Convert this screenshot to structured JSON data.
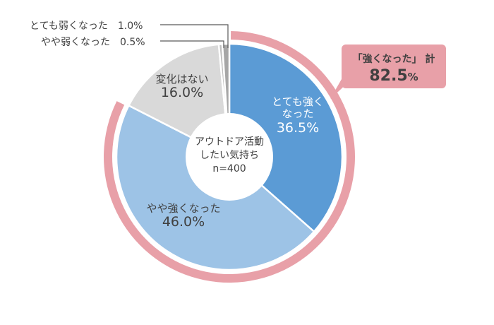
{
  "chart_data": {
    "type": "pie",
    "style": "donut",
    "title": "",
    "center_label": [
      "アウトドア活動",
      "したい気持ち",
      "n=400"
    ],
    "categories": [
      "とても強くなった",
      "やや強くなった",
      "変化はない",
      "やや弱くなった",
      "とても弱くなった"
    ],
    "values": [
      36.5,
      46.0,
      16.0,
      0.5,
      1.0
    ],
    "colors": [
      "#5b9bd5",
      "#9dc3e6",
      "#d9d9d9",
      "#bfbfbf",
      "#a6a6a6"
    ],
    "value_labels": [
      "36.5%",
      "46.0%",
      "16.0%",
      "0.5%",
      "1.0%"
    ],
    "highlight_arc": {
      "covers": [
        "とても強くなった",
        "やや強くなった"
      ],
      "color": "#e8a0a8"
    },
    "callout": {
      "title": "「強くなった」 計",
      "value": "82.5",
      "unit": "%"
    }
  },
  "labels": {
    "very_strong": {
      "cat1": "とても強く",
      "cat2": "なった",
      "val": "36.5%"
    },
    "some_strong": {
      "cat": "やや強くなった",
      "val": "46.0%"
    },
    "no_change": {
      "cat": "変化はない",
      "val": "16.0%"
    },
    "some_weak": {
      "cat": "やや弱くなった",
      "val": "0.5%"
    },
    "very_weak": {
      "cat": "とても弱くなった",
      "val": "1.0%"
    }
  },
  "center": {
    "line1": "アウトドア活動",
    "line2": "したい気持ち",
    "line3": "n=400"
  },
  "callout": {
    "title": "「強くなった」 計",
    "value": "82.5",
    "unit": "%"
  }
}
